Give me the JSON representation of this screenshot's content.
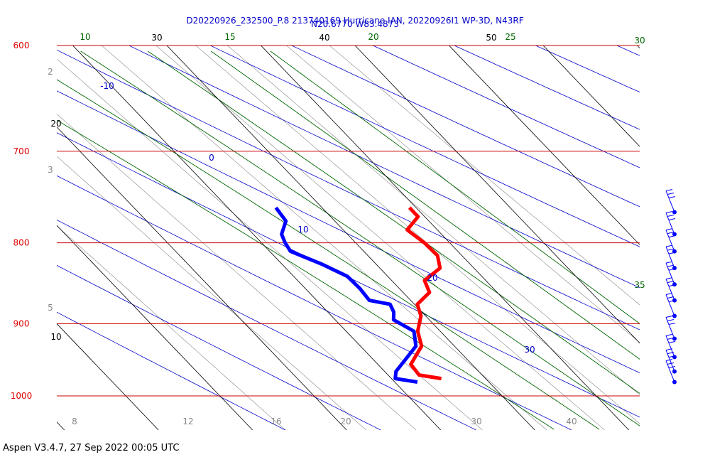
{
  "chart_data": {
    "type": "skew-t",
    "title_line1": "D20220926_232500_P.8 213740169 Hurricane IAN, 20220926I1 WP-3D, N43RF",
    "title_line2": "N20.6770 W83.4873",
    "pressure_levels": [
      600,
      700,
      800,
      900,
      1000
    ],
    "left_isotherm_labels": [
      {
        "label": "20",
        "pressure": 677
      },
      {
        "label": "10",
        "pressure": 925
      }
    ],
    "top_isotherm_labels": [
      "30",
      "40",
      "50"
    ],
    "dry_adiabat_labels": [
      "-10",
      "0",
      "10",
      "20",
      "30"
    ],
    "moist_adiabat_labels": [
      {
        "label": "10",
        "edge": "top"
      },
      {
        "label": "15",
        "edge": "top"
      },
      {
        "label": "20",
        "edge": "top"
      },
      {
        "label": "25",
        "edge": "top"
      },
      {
        "label": "30",
        "edge": "top"
      },
      {
        "label": "35",
        "edge": "right"
      }
    ],
    "mixing_ratio_left_labels": [
      "2",
      "3",
      "5"
    ],
    "mixing_ratio_bottom_labels": [
      "8",
      "12",
      "16",
      "20",
      "30",
      "40"
    ],
    "colors": {
      "isobar": "#cc0000",
      "pressure_label": "#dd0000",
      "isotherm": "#000000",
      "dry_adiabat": "#0000cc",
      "moist_adiabat": "#006600",
      "mixing_ratio": "#888888",
      "temperature": "#ff0000",
      "dewpoint": "#0000ff",
      "title": "#0000cc",
      "wind_barb": "#0000ff"
    },
    "series": [
      {
        "id": "temperature",
        "points": [
          [
            760,
            19.3
          ],
          [
            770,
            19.3
          ],
          [
            785,
            16.8
          ],
          [
            800,
            17.3
          ],
          [
            815,
            17.4
          ],
          [
            830,
            16.4
          ],
          [
            845,
            13.5
          ],
          [
            860,
            12.8
          ],
          [
            875,
            10.3
          ],
          [
            890,
            9.5
          ],
          [
            910,
            7.6
          ],
          [
            930,
            6.5
          ],
          [
            955,
            3.5
          ],
          [
            970,
            3.3
          ],
          [
            975,
            5.3
          ]
        ]
      },
      {
        "id": "dewpoint",
        "points": [
          [
            760,
            5.1
          ],
          [
            775,
            4.8
          ],
          [
            790,
            3.0
          ],
          [
            800,
            2.5
          ],
          [
            810,
            2.2
          ],
          [
            825,
            4.2
          ],
          [
            840,
            5.7
          ],
          [
            855,
            5.8
          ],
          [
            870,
            5.6
          ],
          [
            875,
            7.4
          ],
          [
            885,
            7.0
          ],
          [
            895,
            6.2
          ],
          [
            910,
            7.2
          ],
          [
            930,
            5.9
          ],
          [
            950,
            3.2
          ],
          [
            965,
            1.2
          ],
          [
            975,
            0.4
          ],
          [
            980,
            2.4
          ]
        ]
      }
    ],
    "wind_barbs_pressure": [
      765,
      790,
      810,
      830,
      850,
      870,
      890,
      920,
      945,
      965,
      980
    ]
  },
  "footer": "Aspen V3.4.7, 27 Sep 2022  00:05 UTC"
}
